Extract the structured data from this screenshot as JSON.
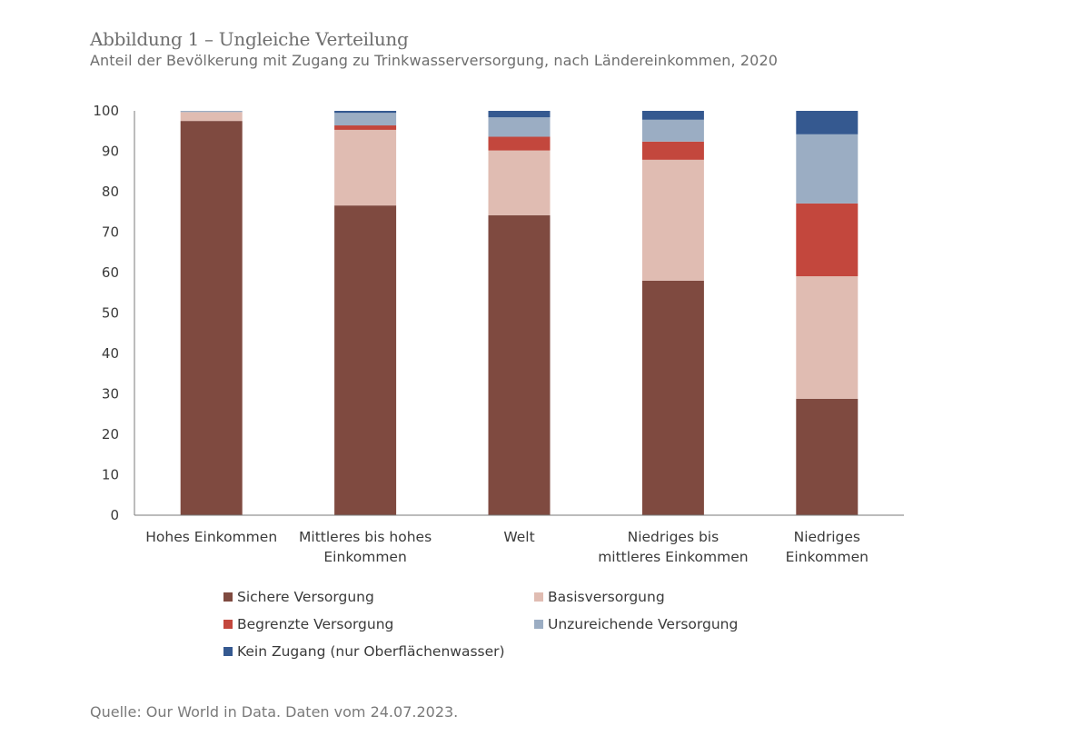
{
  "title": "Abbildung 1 – Ungleiche Verteilung",
  "subtitle": "Anteil der Bevölkerung mit Zugang zu Trinkwasserversorgung, nach Ländereinkommen, 2020",
  "source": "Quelle: Our World in Data. Daten vom 24.07.2023.",
  "chart_data": {
    "type": "bar",
    "stacked": true,
    "title": "Abbildung 1 – Ungleiche Verteilung",
    "subtitle": "Anteil der Bevölkerung mit Zugang zu Trinkwasserversorgung, nach Ländereinkommen, 2020",
    "xlabel": "",
    "ylabel": "",
    "ylim": [
      0,
      100
    ],
    "yticks": [
      0,
      10,
      20,
      30,
      40,
      50,
      60,
      70,
      80,
      90,
      100
    ],
    "grid": false,
    "legend_position": "bottom",
    "categories": [
      [
        "Hohes Einkommen"
      ],
      [
        "Mittleres bis hohes",
        "Einkommen"
      ],
      [
        "Welt"
      ],
      [
        "Niedriges bis",
        "mittleres Einkommen"
      ],
      [
        "Niedriges",
        "Einkommen"
      ]
    ],
    "series": [
      {
        "name": "Sichere Versorgung",
        "color": "#7f4a40",
        "values": [
          97.5,
          76.6,
          74.2,
          58.0,
          28.8
        ]
      },
      {
        "name": "Basisversorgung",
        "color": "#e0bcb2",
        "values": [
          2.2,
          18.7,
          16.0,
          29.9,
          30.3
        ]
      },
      {
        "name": "Begrenzte Versorgung",
        "color": "#c3473d",
        "values": [
          0.0,
          1.1,
          3.4,
          4.5,
          18.0
        ]
      },
      {
        "name": "Unzureichende Versorgung",
        "color": "#9badc3",
        "values": [
          0.3,
          3.1,
          4.8,
          5.4,
          17.1
        ]
      },
      {
        "name": "Kein Zugang (nur Oberflächenwasser)",
        "color": "#355990",
        "values": [
          0.0,
          0.5,
          1.6,
          2.2,
          5.8
        ]
      }
    ]
  }
}
